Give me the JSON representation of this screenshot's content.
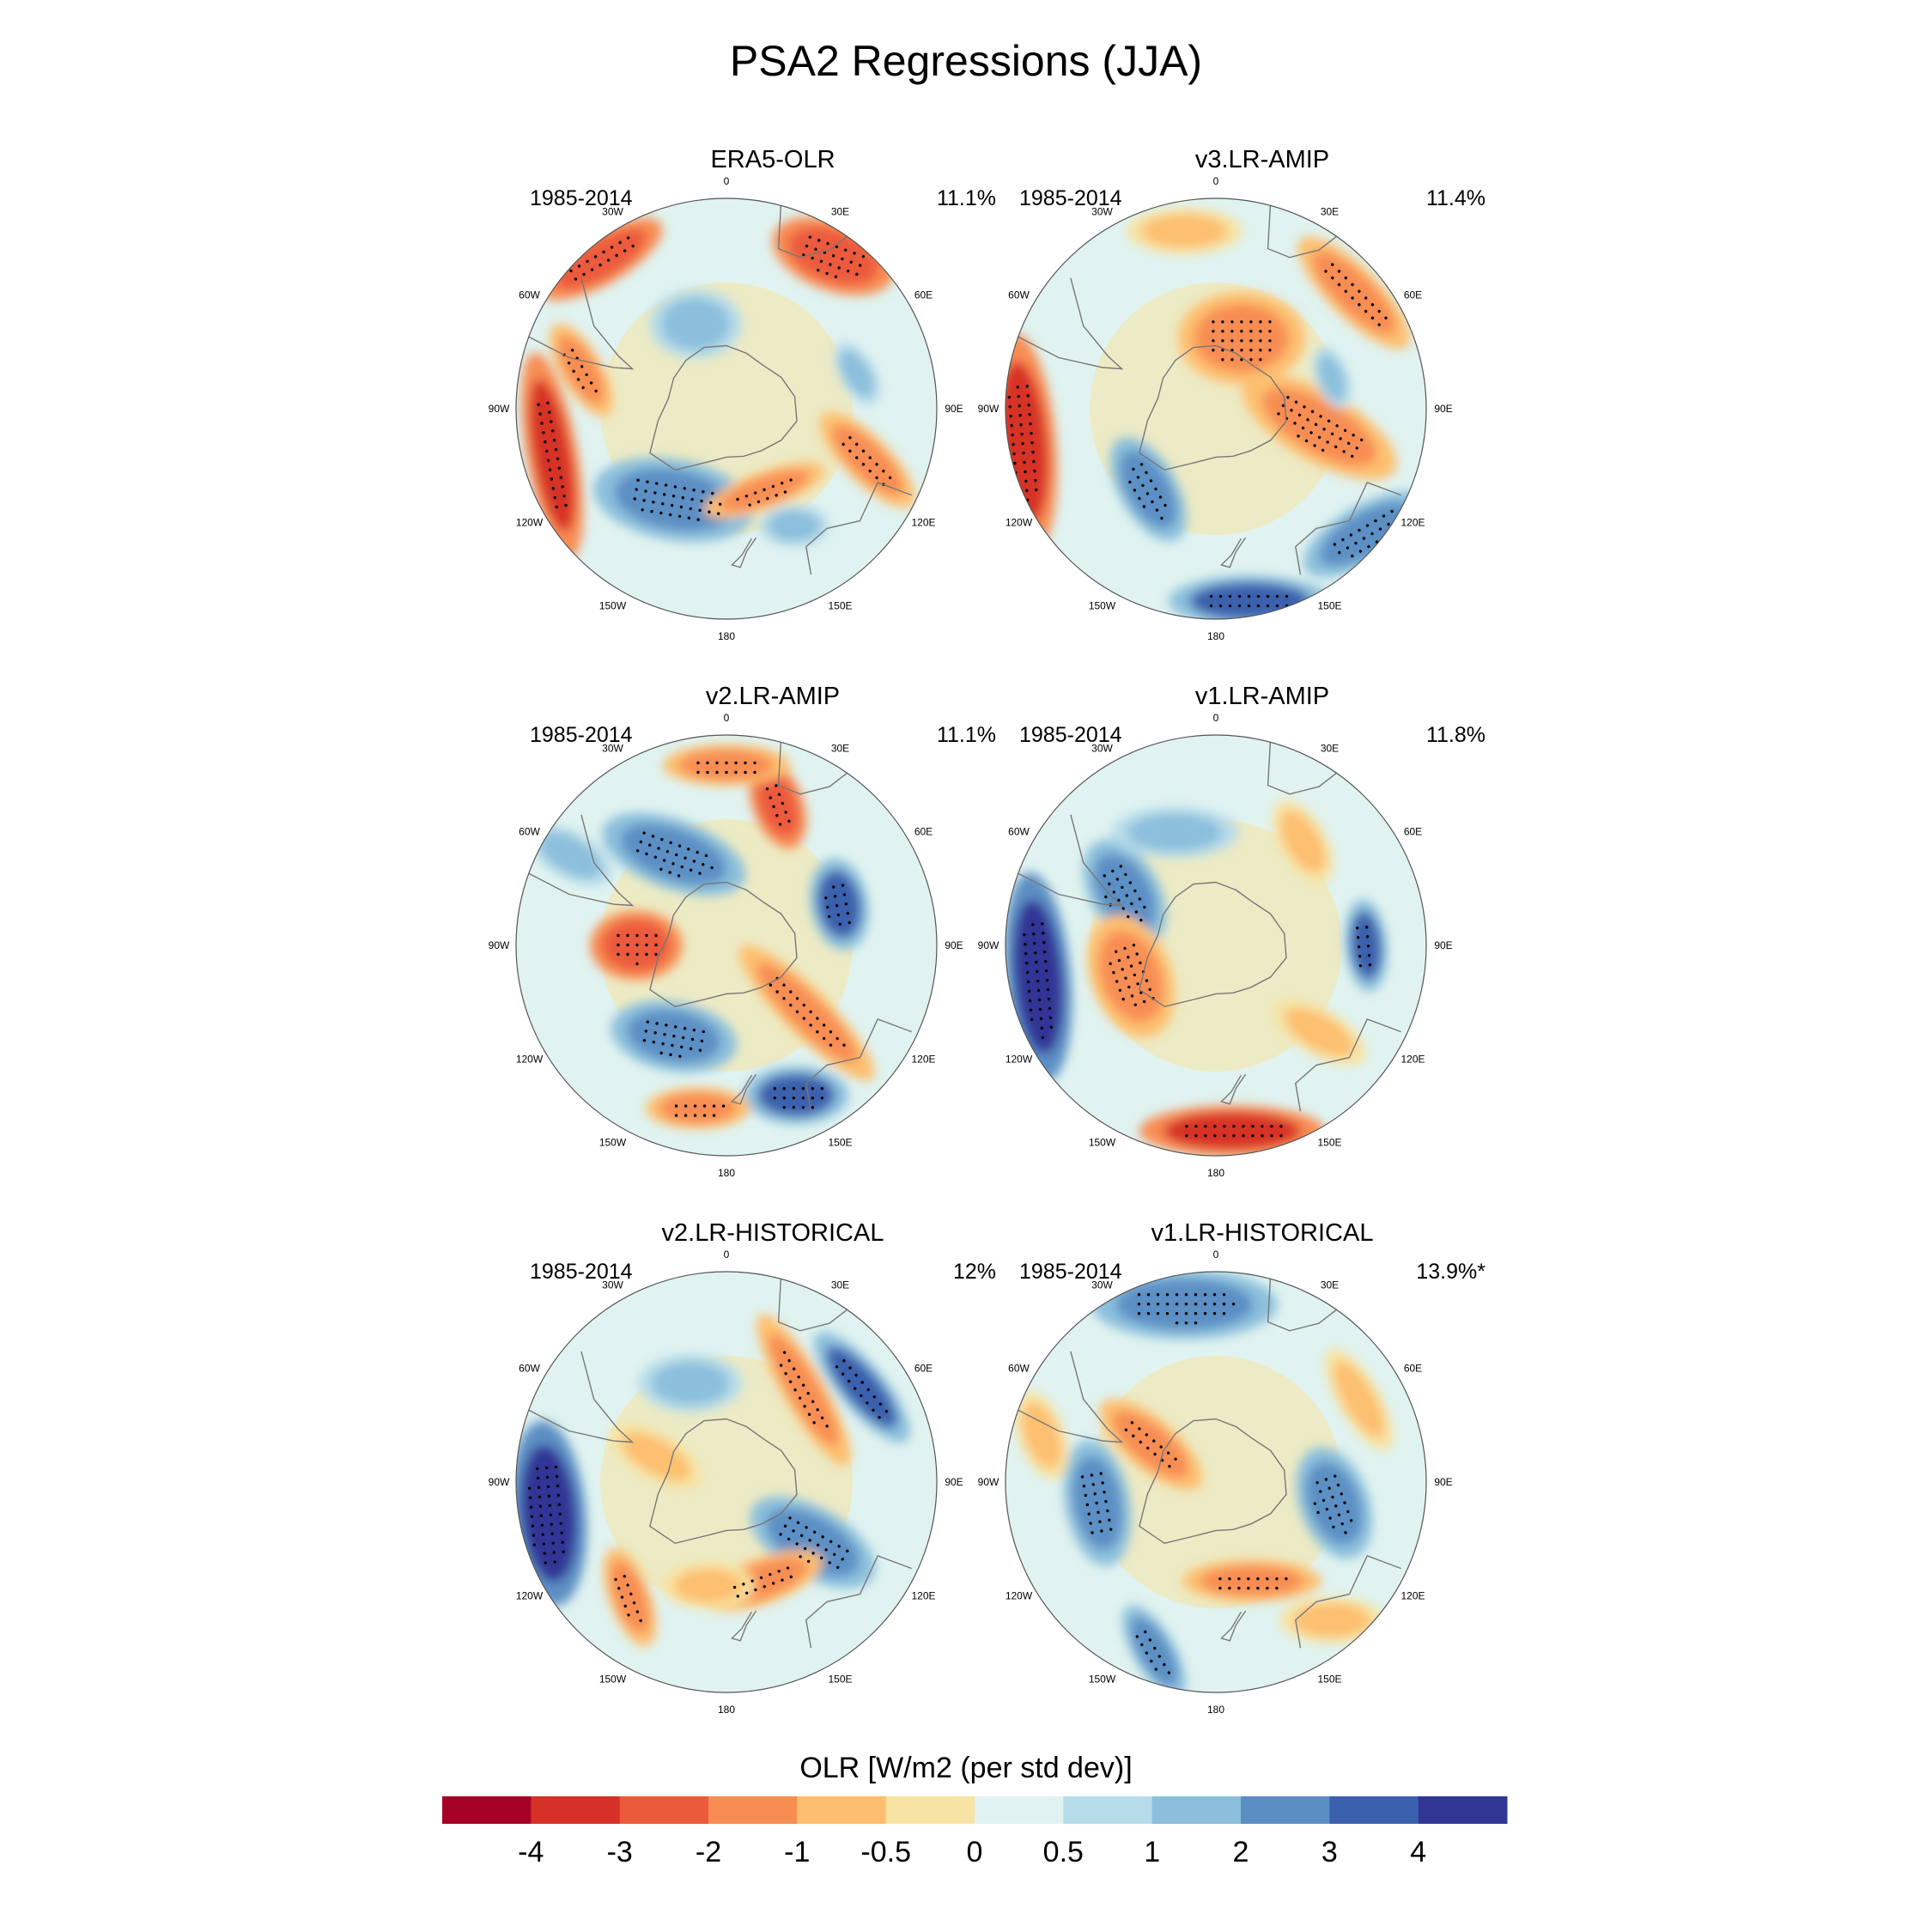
{
  "title": "PSA2 Regressions (JJA)",
  "longitude_labels": [
    "0",
    "30E",
    "60E",
    "90E",
    "120E",
    "150E",
    "180",
    "150W",
    "120W",
    "90W",
    "60W",
    "30W"
  ],
  "panels": [
    {
      "name": "ERA5-OLR",
      "years": "1985-2014",
      "variance": "11.1%"
    },
    {
      "name": "v3.LR-AMIP",
      "years": "1985-2014",
      "variance": "11.4%"
    },
    {
      "name": "v2.LR-AMIP",
      "years": "1985-2014",
      "variance": "11.1%"
    },
    {
      "name": "v1.LR-AMIP",
      "years": "1985-2014",
      "variance": "11.8%"
    },
    {
      "name": "v2.LR-HISTORICAL",
      "years": "1985-2014",
      "variance": "12%"
    },
    {
      "name": "v1.LR-HISTORICAL",
      "years": "1985-2014",
      "variance": "13.9%*"
    }
  ],
  "colorbar": {
    "title": "OLR [W/m2 (per std dev)]",
    "tick_labels": [
      "-4",
      "-3",
      "-2",
      "-1",
      "-0.5",
      "0",
      "0.5",
      "1",
      "2",
      "3",
      "4"
    ],
    "colors": [
      "#a50026",
      "#d73027",
      "#ec5a3c",
      "#f88d52",
      "#fdbf6f",
      "#f7e3a3",
      "#e0f3f0",
      "#b7dcea",
      "#8bbfdc",
      "#5b8fc4",
      "#3b60ad",
      "#313695"
    ]
  },
  "map_anomalies": [
    [
      {
        "lon": -40,
        "lat": -25,
        "rx": 60,
        "ry": 22,
        "rot": -30,
        "v": -3
      },
      {
        "lon": 35,
        "lat": -28,
        "rx": 55,
        "ry": 30,
        "rot": 20,
        "v": -3
      },
      {
        "lon": -105,
        "lat": -30,
        "rx": 90,
        "ry": 22,
        "rot": 80,
        "v": -4
      },
      {
        "lon": -75,
        "lat": -40,
        "rx": 45,
        "ry": 18,
        "rot": 60,
        "v": -2
      },
      {
        "lon": -150,
        "lat": -55,
        "rx": 70,
        "ry": 35,
        "rot": 10,
        "v": 2
      },
      {
        "lon": 75,
        "lat": -45,
        "rx": 30,
        "ry": 15,
        "rot": 60,
        "v": 1
      },
      {
        "lon": 110,
        "lat": -40,
        "rx": 55,
        "ry": 20,
        "rot": 45,
        "v": -2
      },
      {
        "lon": 150,
        "lat": -45,
        "rx": 30,
        "ry": 18,
        "rot": 0,
        "v": 1
      },
      {
        "lon": 155,
        "lat": -60,
        "rx": 55,
        "ry": 16,
        "rot": -20,
        "v": -2
      },
      {
        "lon": -20,
        "lat": -60,
        "rx": 40,
        "ry": 30,
        "rot": 0,
        "v": 1
      }
    ],
    [
      {
        "lon": -100,
        "lat": -25,
        "rx": 95,
        "ry": 28,
        "rot": 85,
        "v": -4
      },
      {
        "lon": 50,
        "lat": -30,
        "rx": 65,
        "ry": 22,
        "rot": 45,
        "v": -2
      },
      {
        "lon": 20,
        "lat": -65,
        "rx": 55,
        "ry": 40,
        "rot": 0,
        "v": -2
      },
      {
        "lon": 100,
        "lat": -55,
        "rx": 75,
        "ry": 30,
        "rot": 30,
        "v": -2
      },
      {
        "lon": -140,
        "lat": -55,
        "rx": 50,
        "ry": 25,
        "rot": 60,
        "v": 2
      },
      {
        "lon": 170,
        "lat": -25,
        "rx": 70,
        "ry": 22,
        "rot": 0,
        "v": 3
      },
      {
        "lon": 130,
        "lat": -25,
        "rx": 60,
        "ry": 25,
        "rot": -30,
        "v": 2
      },
      {
        "lon": 75,
        "lat": -50,
        "rx": 28,
        "ry": 14,
        "rot": 70,
        "v": 1
      },
      {
        "lon": -10,
        "lat": -30,
        "rx": 50,
        "ry": 20,
        "rot": 0,
        "v": -1
      }
    ],
    [
      {
        "lon": -30,
        "lat": -55,
        "rx": 65,
        "ry": 30,
        "rot": 20,
        "v": 2
      },
      {
        "lon": 20,
        "lat": -40,
        "rx": 40,
        "ry": 22,
        "rot": 70,
        "v": -3
      },
      {
        "lon": -90,
        "lat": -60,
        "rx": 40,
        "ry": 30,
        "rot": 0,
        "v": -3
      },
      {
        "lon": 70,
        "lat": -50,
        "rx": 40,
        "ry": 25,
        "rot": 80,
        "v": 3
      },
      {
        "lon": -150,
        "lat": -55,
        "rx": 55,
        "ry": 30,
        "rot": 10,
        "v": 2
      },
      {
        "lon": 130,
        "lat": -55,
        "rx": 80,
        "ry": 20,
        "rot": 45,
        "v": -2
      },
      {
        "lon": 155,
        "lat": -35,
        "rx": 45,
        "ry": 25,
        "rot": 0,
        "v": 3
      },
      {
        "lon": -170,
        "lat": -35,
        "rx": 45,
        "ry": 18,
        "rot": 0,
        "v": -2
      },
      {
        "lon": 0,
        "lat": -30,
        "rx": 55,
        "ry": 18,
        "rot": 0,
        "v": -2
      },
      {
        "lon": -60,
        "lat": -30,
        "rx": 40,
        "ry": 20,
        "rot": 30,
        "v": 1
      }
    ],
    [
      {
        "lon": -100,
        "lat": -30,
        "rx": 90,
        "ry": 28,
        "rot": 85,
        "v": 4
      },
      {
        "lon": -60,
        "lat": -55,
        "rx": 50,
        "ry": 30,
        "rot": 60,
        "v": 2
      },
      {
        "lon": -110,
        "lat": -60,
        "rx": 55,
        "ry": 35,
        "rot": 70,
        "v": -2
      },
      {
        "lon": 175,
        "lat": -28,
        "rx": 80,
        "ry": 22,
        "rot": 0,
        "v": -4
      },
      {
        "lon": 90,
        "lat": -40,
        "rx": 40,
        "ry": 18,
        "rot": 85,
        "v": 3
      },
      {
        "lon": -20,
        "lat": -50,
        "rx": 55,
        "ry": 22,
        "rot": 0,
        "v": 1
      },
      {
        "lon": 130,
        "lat": -45,
        "rx": 45,
        "ry": 20,
        "rot": 30,
        "v": -1
      },
      {
        "lon": 40,
        "lat": -45,
        "rx": 40,
        "ry": 20,
        "rot": 60,
        "v": -1
      }
    ],
    [
      {
        "lon": -100,
        "lat": -30,
        "rx": 80,
        "ry": 32,
        "rot": 85,
        "v": 4
      },
      {
        "lon": 55,
        "lat": -35,
        "rx": 60,
        "ry": 20,
        "rot": 50,
        "v": 3
      },
      {
        "lon": 40,
        "lat": -50,
        "rx": 75,
        "ry": 18,
        "rot": 60,
        "v": -2
      },
      {
        "lon": 125,
        "lat": -55,
        "rx": 60,
        "ry": 30,
        "rot": 30,
        "v": 2
      },
      {
        "lon": -140,
        "lat": -40,
        "rx": 45,
        "ry": 18,
        "rot": 70,
        "v": -2
      },
      {
        "lon": -20,
        "lat": -55,
        "rx": 45,
        "ry": 25,
        "rot": 0,
        "v": 1
      },
      {
        "lon": -70,
        "lat": -65,
        "rx": 45,
        "ry": 20,
        "rot": 30,
        "v": -1
      },
      {
        "lon": 160,
        "lat": -55,
        "rx": 55,
        "ry": 20,
        "rot": -20,
        "v": -2
      },
      {
        "lon": -170,
        "lat": -55,
        "rx": 40,
        "ry": 20,
        "rot": 0,
        "v": -1
      }
    ],
    [
      {
        "lon": -10,
        "lat": -30,
        "rx": 80,
        "ry": 30,
        "rot": 0,
        "v": 2
      },
      {
        "lon": -100,
        "lat": -50,
        "rx": 55,
        "ry": 28,
        "rot": 80,
        "v": 2
      },
      {
        "lon": 100,
        "lat": -50,
        "rx": 50,
        "ry": 30,
        "rot": 70,
        "v": 2
      },
      {
        "lon": -60,
        "lat": -65,
        "rx": 55,
        "ry": 22,
        "rot": 40,
        "v": -2
      },
      {
        "lon": 160,
        "lat": -55,
        "rx": 60,
        "ry": 18,
        "rot": 0,
        "v": -2
      },
      {
        "lon": -160,
        "lat": -30,
        "rx": 45,
        "ry": 18,
        "rot": 60,
        "v": 2
      },
      {
        "lon": 60,
        "lat": -35,
        "rx": 50,
        "ry": 18,
        "rot": 60,
        "v": -1
      },
      {
        "lon": -75,
        "lat": -30,
        "rx": 40,
        "ry": 20,
        "rot": 70,
        "v": -1
      },
      {
        "lon": 140,
        "lat": -30,
        "rx": 45,
        "ry": 20,
        "rot": 0,
        "v": -1
      }
    ]
  ]
}
